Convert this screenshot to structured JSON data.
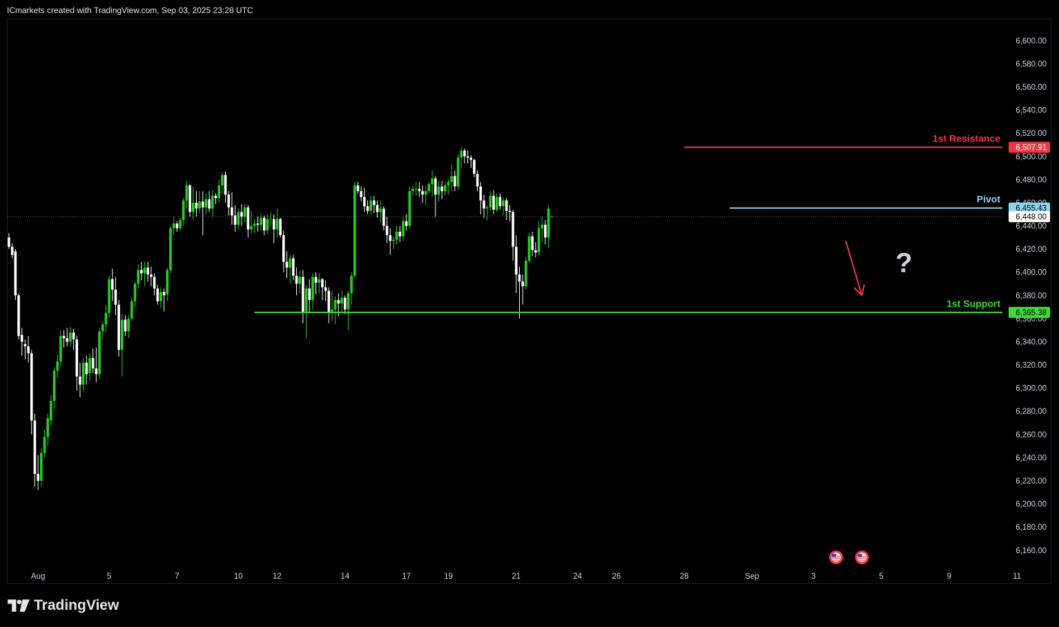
{
  "header": {
    "text": "ICmarkets created with TradingView.com, Sep 03, 2025 23:28 UTC"
  },
  "footer": {
    "brand": "TradingView"
  },
  "colors": {
    "up": "#22d11f",
    "down": "#ffffff",
    "resistance": "#f23645",
    "pivot": "#8fd6f0",
    "support": "#3ddc35",
    "arrow": "#f23645",
    "question": "#d0d3dc",
    "axis_text": "#d1d4dc"
  },
  "chart_data": {
    "type": "candlestick",
    "title": "",
    "y_axis": {
      "ylim": [
        6140,
        6620
      ],
      "ticks": [
        6600,
        6580,
        6560,
        6540,
        6520,
        6500,
        6480,
        6460,
        6440,
        6420,
        6400,
        6380,
        6360,
        6340,
        6320,
        6300,
        6280,
        6260,
        6240,
        6220,
        6200,
        6180,
        6160
      ],
      "tick_labels": [
        "6,600.00",
        "6,580.00",
        "6,560.00",
        "6,540.00",
        "6,520.00",
        "6,500.00",
        "6,480.00",
        "6,460.00",
        "6,440.00",
        "6,420.00",
        "6,400.00",
        "6,380.00",
        "6,360.00",
        "6,340.00",
        "6,320.00",
        "6,300.00",
        "6,280.00",
        "6,260.00",
        "6,240.00",
        "6,220.00",
        "6,200.00",
        "6,180.00",
        "6,160.00"
      ]
    },
    "x_axis": {
      "tick_labels": [
        {
          "label": "Aug",
          "bar": 9
        },
        {
          "label": "5",
          "bar": 31
        },
        {
          "label": "7",
          "bar": 52
        },
        {
          "label": "10",
          "bar": 71
        },
        {
          "label": "12",
          "bar": 83
        },
        {
          "label": "14",
          "bar": 104
        },
        {
          "label": "17",
          "bar": 123
        },
        {
          "label": "19",
          "bar": 136
        },
        {
          "label": "21",
          "bar": 157
        },
        {
          "label": "24",
          "bar": 176
        },
        {
          "label": "26",
          "bar": 188
        },
        {
          "label": "28",
          "bar": 209
        },
        {
          "label": "Sep",
          "bar": 230
        },
        {
          "label": "3",
          "bar": 249
        },
        {
          "label": "5",
          "bar": 270
        },
        {
          "label": "9",
          "bar": 291
        },
        {
          "label": "11",
          "bar": 312
        }
      ]
    },
    "candles": [
      [
        6430,
        6434,
        6420,
        6422
      ],
      [
        6422,
        6425,
        6412,
        6415
      ],
      [
        6418,
        6420,
        6376,
        6380
      ],
      [
        6380,
        6382,
        6342,
        6345
      ],
      [
        6346,
        6352,
        6328,
        6340
      ],
      [
        6338,
        6342,
        6325,
        6336
      ],
      [
        6336,
        6345,
        6322,
        6330
      ],
      [
        6330,
        6333,
        6260,
        6272
      ],
      [
        6272,
        6278,
        6215,
        6226
      ],
      [
        6226,
        6242,
        6212,
        6220
      ],
      [
        6220,
        6248,
        6215,
        6244
      ],
      [
        6244,
        6264,
        6240,
        6258
      ],
      [
        6258,
        6278,
        6250,
        6274
      ],
      [
        6272,
        6294,
        6268,
        6289
      ],
      [
        6289,
        6318,
        6282,
        6315
      ],
      [
        6315,
        6329,
        6309,
        6323
      ],
      [
        6323,
        6350,
        6319,
        6345
      ],
      [
        6345,
        6350,
        6335,
        6343
      ],
      [
        6343,
        6352,
        6336,
        6340
      ],
      [
        6340,
        6353,
        6336,
        6348
      ],
      [
        6348,
        6351,
        6333,
        6342
      ],
      [
        6342,
        6345,
        6298,
        6310
      ],
      [
        6310,
        6322,
        6292,
        6303
      ],
      [
        6303,
        6326,
        6297,
        6322
      ],
      [
        6322,
        6328,
        6303,
        6312
      ],
      [
        6313,
        6330,
        6306,
        6326
      ],
      [
        6326,
        6334,
        6313,
        6317
      ],
      [
        6317,
        6335,
        6305,
        6312
      ],
      [
        6312,
        6352,
        6308,
        6349
      ],
      [
        6349,
        6358,
        6342,
        6355
      ],
      [
        6355,
        6372,
        6348,
        6365
      ],
      [
        6365,
        6397,
        6361,
        6394
      ],
      [
        6394,
        6403,
        6375,
        6385
      ],
      [
        6385,
        6396,
        6363,
        6372
      ],
      [
        6372,
        6376,
        6327,
        6333
      ],
      [
        6333,
        6364,
        6310,
        6359
      ],
      [
        6359,
        6363,
        6345,
        6349
      ],
      [
        6349,
        6363,
        6343,
        6360
      ],
      [
        6360,
        6378,
        6358,
        6375
      ],
      [
        6375,
        6392,
        6370,
        6390
      ],
      [
        6390,
        6407,
        6386,
        6402
      ],
      [
        6402,
        6409,
        6393,
        6399
      ],
      [
        6399,
        6409,
        6388,
        6404
      ],
      [
        6404,
        6409,
        6392,
        6398
      ],
      [
        6398,
        6405,
        6388,
        6396
      ],
      [
        6396,
        6399,
        6380,
        6386
      ],
      [
        6386,
        6389,
        6372,
        6375
      ],
      [
        6375,
        6387,
        6369,
        6383
      ],
      [
        6383,
        6386,
        6366,
        6380
      ],
      [
        6381,
        6404,
        6375,
        6402
      ],
      [
        6402,
        6440,
        6399,
        6438
      ],
      [
        6438,
        6448,
        6432,
        6442
      ],
      [
        6442,
        6444,
        6435,
        6438
      ],
      [
        6438,
        6447,
        6436,
        6445
      ],
      [
        6445,
        6464,
        6440,
        6462
      ],
      [
        6462,
        6479,
        6455,
        6475
      ],
      [
        6475,
        6476,
        6448,
        6452
      ],
      [
        6452,
        6474,
        6445,
        6460
      ],
      [
        6460,
        6470,
        6448,
        6455
      ],
      [
        6455,
        6470,
        6451,
        6461
      ],
      [
        6461,
        6470,
        6432,
        6456
      ],
      [
        6456,
        6468,
        6450,
        6463
      ],
      [
        6463,
        6470,
        6452,
        6455
      ],
      [
        6455,
        6471,
        6448,
        6466
      ],
      [
        6466,
        6468,
        6459,
        6464
      ],
      [
        6464,
        6480,
        6460,
        6475
      ],
      [
        6475,
        6486,
        6468,
        6484
      ],
      [
        6484,
        6487,
        6460,
        6467
      ],
      [
        6467,
        6470,
        6449,
        6456
      ],
      [
        6456,
        6469,
        6441,
        6449
      ],
      [
        6449,
        6458,
        6435,
        6441
      ],
      [
        6441,
        6455,
        6437,
        6452
      ],
      [
        6452,
        6459,
        6440,
        6448
      ],
      [
        6448,
        6459,
        6443,
        6456
      ],
      [
        6456,
        6458,
        6430,
        6437
      ],
      [
        6437,
        6453,
        6433,
        6440
      ],
      [
        6440,
        6446,
        6434,
        6442
      ],
      [
        6442,
        6448,
        6435,
        6441
      ],
      [
        6441,
        6451,
        6436,
        6447
      ],
      [
        6447,
        6449,
        6432,
        6436
      ],
      [
        6436,
        6450,
        6433,
        6446
      ],
      [
        6446,
        6452,
        6440,
        6446
      ],
      [
        6446,
        6450,
        6425,
        6437
      ],
      [
        6437,
        6455,
        6430,
        6446
      ],
      [
        6446,
        6447,
        6430,
        6432
      ],
      [
        6432,
        6436,
        6400,
        6409
      ],
      [
        6409,
        6418,
        6395,
        6404
      ],
      [
        6404,
        6415,
        6390,
        6412
      ],
      [
        6412,
        6415,
        6393,
        6397
      ],
      [
        6397,
        6404,
        6380,
        6390
      ],
      [
        6390,
        6401,
        6382,
        6396
      ],
      [
        6396,
        6402,
        6356,
        6366
      ],
      [
        6366,
        6389,
        6343,
        6386
      ],
      [
        6386,
        6394,
        6365,
        6376
      ],
      [
        6376,
        6399,
        6368,
        6396
      ],
      [
        6396,
        6400,
        6381,
        6391
      ],
      [
        6391,
        6399,
        6382,
        6394
      ],
      [
        6394,
        6395,
        6376,
        6387
      ],
      [
        6387,
        6393,
        6375,
        6384
      ],
      [
        6384,
        6387,
        6356,
        6366
      ],
      [
        6366,
        6384,
        6358,
        6368
      ],
      [
        6368,
        6379,
        6355,
        6376
      ],
      [
        6376,
        6382,
        6362,
        6373
      ],
      [
        6373,
        6384,
        6365,
        6378
      ],
      [
        6378,
        6380,
        6364,
        6368
      ],
      [
        6368,
        6384,
        6350,
        6382
      ],
      [
        6382,
        6400,
        6372,
        6397
      ],
      [
        6397,
        6478,
        6395,
        6475
      ],
      [
        6475,
        6478,
        6468,
        6470
      ],
      [
        6470,
        6474,
        6461,
        6465
      ],
      [
        6465,
        6473,
        6452,
        6457
      ],
      [
        6457,
        6462,
        6450,
        6453
      ],
      [
        6453,
        6466,
        6450,
        6462
      ],
      [
        6462,
        6466,
        6451,
        6458
      ],
      [
        6458,
        6462,
        6447,
        6452
      ],
      [
        6452,
        6462,
        6443,
        6455
      ],
      [
        6455,
        6457,
        6436,
        6440
      ],
      [
        6440,
        6448,
        6425,
        6432
      ],
      [
        6432,
        6438,
        6415,
        6427
      ],
      [
        6427,
        6431,
        6420,
        6428
      ],
      [
        6428,
        6440,
        6424,
        6435
      ],
      [
        6435,
        6440,
        6426,
        6431
      ],
      [
        6431,
        6448,
        6427,
        6444
      ],
      [
        6444,
        6450,
        6436,
        6440
      ],
      [
        6440,
        6474,
        6438,
        6470
      ],
      [
        6470,
        6475,
        6466,
        6472
      ],
      [
        6472,
        6478,
        6466,
        6472
      ],
      [
        6472,
        6478,
        6465,
        6470
      ],
      [
        6470,
        6475,
        6460,
        6467
      ],
      [
        6467,
        6474,
        6458,
        6470
      ],
      [
        6470,
        6478,
        6468,
        6476
      ],
      [
        6476,
        6488,
        6465,
        6481
      ],
      [
        6481,
        6483,
        6448,
        6467
      ],
      [
        6467,
        6479,
        6461,
        6474
      ],
      [
        6474,
        6479,
        6463,
        6470
      ],
      [
        6470,
        6478,
        6466,
        6475
      ],
      [
        6475,
        6480,
        6467,
        6478
      ],
      [
        6478,
        6493,
        6470,
        6483
      ],
      [
        6483,
        6488,
        6470,
        6474
      ],
      [
        6474,
        6502,
        6471,
        6499
      ],
      [
        6499,
        6508,
        6490,
        6505
      ],
      [
        6505,
        6507,
        6494,
        6500
      ],
      [
        6500,
        6505,
        6494,
        6499
      ],
      [
        6499,
        6501,
        6490,
        6497
      ],
      [
        6497,
        6498,
        6482,
        6485
      ],
      [
        6485,
        6488,
        6470,
        6474
      ],
      [
        6474,
        6478,
        6450,
        6462
      ],
      [
        6462,
        6467,
        6447,
        6455
      ],
      [
        6455,
        6458,
        6445,
        6456
      ],
      [
        6456,
        6470,
        6453,
        6466
      ],
      [
        6466,
        6471,
        6450,
        6454
      ],
      [
        6454,
        6468,
        6452,
        6465
      ],
      [
        6465,
        6468,
        6454,
        6457
      ],
      [
        6457,
        6465,
        6449,
        6462
      ],
      [
        6462,
        6464,
        6445,
        6453
      ],
      [
        6453,
        6458,
        6444,
        6452
      ],
      [
        6452,
        6454,
        6410,
        6422
      ],
      [
        6422,
        6432,
        6382,
        6398
      ],
      [
        6398,
        6405,
        6360,
        6392
      ],
      [
        6392,
        6398,
        6372,
        6388
      ],
      [
        6388,
        6413,
        6385,
        6410
      ],
      [
        6410,
        6434,
        6408,
        6431
      ],
      [
        6431,
        6435,
        6414,
        6419
      ],
      [
        6419,
        6426,
        6413,
        6417
      ],
      [
        6417,
        6444,
        6415,
        6438
      ],
      [
        6438,
        6448,
        6426,
        6441
      ],
      [
        6441,
        6445,
        6424,
        6430
      ],
      [
        6430,
        6457,
        6421,
        6455
      ],
      [
        6448,
        6449,
        6447,
        6448
      ]
    ],
    "levels": [
      {
        "name": "1st Resistance",
        "value": 6507.91,
        "price_label": "6,507.91",
        "from_bar": 209
      },
      {
        "name": "Pivot",
        "value": 6455.43,
        "price_label": "6,455.43",
        "from_bar": 223
      },
      {
        "name": "1st Support",
        "value": 6365.38,
        "price_label": "6,365.38",
        "from_bar": 76
      }
    ],
    "last_price": {
      "value": 6448.0,
      "label": "6,448.00"
    },
    "annotations": [
      {
        "type": "arrow",
        "direction": "down",
        "from": [
          259,
          6427
        ],
        "to": [
          264,
          6380
        ]
      },
      {
        "type": "text",
        "text": "?",
        "at": [
          277,
          6400
        ]
      }
    ],
    "event_markers": [
      {
        "bar": 256,
        "icon": "us-flag-icon"
      },
      {
        "bar": 264,
        "icon": "us-flag-icon"
      }
    ],
    "grid": false
  }
}
